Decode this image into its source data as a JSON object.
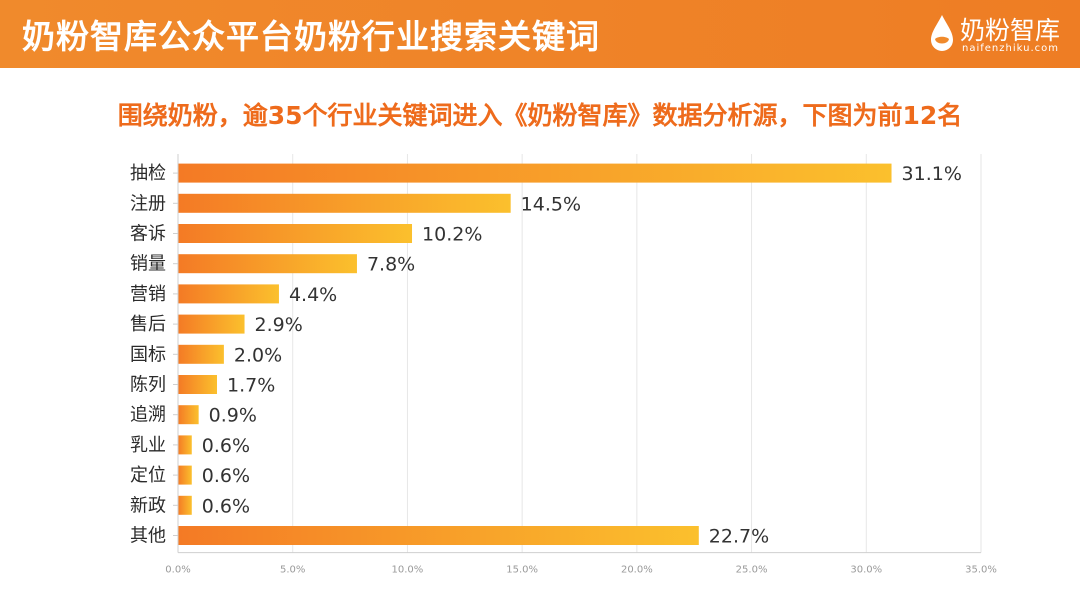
{
  "header": {
    "title": "奶粉智库公众平台奶粉行业搜索关键词",
    "logo_name": "奶粉智库",
    "logo_url": "naifenzhiku.com"
  },
  "subtitle": "围绕奶粉，逾35个行业关键词进入《奶粉智库》数据分析源，下图为前12名",
  "colors": {
    "header": "#f08a2c",
    "subtitle": "#ee6b1c",
    "bar_start": "#f47a25",
    "bar_end": "#fbc02d"
  },
  "chart_data": {
    "type": "bar",
    "orientation": "horizontal",
    "title": "",
    "xlabel": "",
    "ylabel": "",
    "categories": [
      "抽检",
      "注册",
      "客诉",
      "销量",
      "营销",
      "售后",
      "国标",
      "陈列",
      "追溯",
      "乳业",
      "定位",
      "新政",
      "其他"
    ],
    "values": [
      31.1,
      14.5,
      10.2,
      7.8,
      4.4,
      2.9,
      2.0,
      1.7,
      0.9,
      0.6,
      0.6,
      0.6,
      22.7
    ],
    "value_labels": [
      "31.1%",
      "14.5%",
      "10.2%",
      "7.8%",
      "4.4%",
      "2.9%",
      "2.0%",
      "1.7%",
      "0.9%",
      "0.6%",
      "0.6%",
      "0.6%",
      "22.7%"
    ],
    "xlim": [
      0,
      35
    ],
    "xticks": [
      0,
      5,
      10,
      15,
      20,
      25,
      30,
      35
    ],
    "xtick_labels": [
      "0.0%",
      "5.0%",
      "10.0%",
      "15.0%",
      "20.0%",
      "25.0%",
      "30.0%",
      "35.0%"
    ],
    "grid": true,
    "legend": "none"
  }
}
